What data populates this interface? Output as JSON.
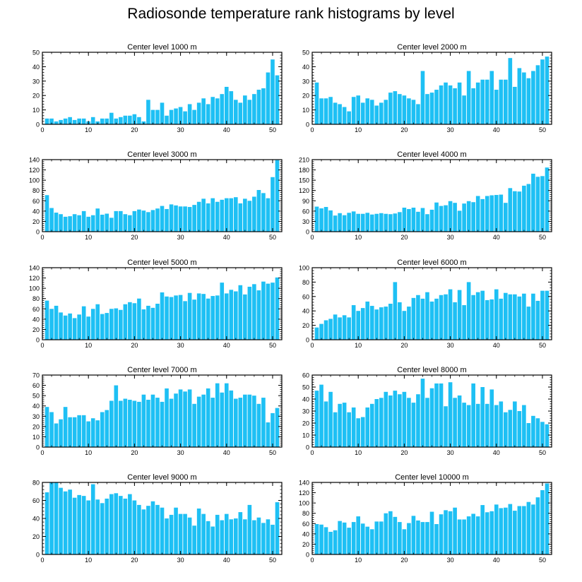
{
  "title": "Radiosonde temperature rank histograms by level",
  "colors": {
    "bar": "#1ec0f4",
    "axis": "#000000",
    "background": "#ffffff"
  },
  "chart_data": [
    {
      "type": "bar",
      "title": "Center level 1000 m",
      "ylim": [
        0,
        50
      ],
      "yticks": [
        0,
        10,
        20,
        30,
        40,
        50
      ],
      "xlim": [
        0,
        52
      ],
      "xticks": [
        0,
        10,
        20,
        30,
        40,
        50
      ],
      "x": [
        1,
        2,
        3,
        4,
        5,
        6,
        7,
        8,
        9,
        10,
        11,
        12,
        13,
        14,
        15,
        16,
        17,
        18,
        19,
        20,
        21,
        22,
        23,
        24,
        25,
        26,
        27,
        28,
        29,
        30,
        31,
        32,
        33,
        34,
        35,
        36,
        37,
        38,
        39,
        40,
        41,
        42,
        43,
        44,
        45,
        46,
        47,
        48,
        49,
        50,
        51
      ],
      "values": [
        4,
        4,
        2,
        3,
        4,
        5,
        3,
        4,
        4,
        2,
        5,
        2,
        4,
        4,
        8,
        4,
        5,
        6,
        6,
        7,
        5,
        2,
        17,
        10,
        10,
        15,
        6,
        10,
        11,
        12,
        9,
        14,
        10,
        15,
        18,
        14,
        19,
        18,
        21,
        26,
        23,
        17,
        15,
        20,
        17,
        21,
        24,
        25,
        36,
        45,
        34
      ]
    },
    {
      "type": "bar",
      "title": "Center level 2000 m",
      "ylim": [
        0,
        50
      ],
      "yticks": [
        0,
        10,
        20,
        30,
        40,
        50
      ],
      "xlim": [
        0,
        52
      ],
      "xticks": [
        0,
        10,
        20,
        30,
        40,
        50
      ],
      "x": [
        1,
        2,
        3,
        4,
        5,
        6,
        7,
        8,
        9,
        10,
        11,
        12,
        13,
        14,
        15,
        16,
        17,
        18,
        19,
        20,
        21,
        22,
        23,
        24,
        25,
        26,
        27,
        28,
        29,
        30,
        31,
        32,
        33,
        34,
        35,
        36,
        37,
        38,
        39,
        40,
        41,
        42,
        43,
        44,
        45,
        46,
        47,
        48,
        49,
        50,
        51
      ],
      "values": [
        29,
        18,
        18,
        19,
        15,
        14,
        12,
        9,
        19,
        20,
        15,
        18,
        17,
        13,
        15,
        17,
        22,
        23,
        21,
        20,
        18,
        17,
        14,
        37,
        21,
        22,
        24,
        27,
        29,
        27,
        25,
        29,
        20,
        37,
        25,
        29,
        31,
        31,
        37,
        24,
        31,
        31,
        46,
        26,
        39,
        36,
        32,
        37,
        41,
        45,
        47
      ]
    },
    {
      "type": "bar",
      "title": "Center level 3000 m",
      "ylim": [
        0,
        140
      ],
      "yticks": [
        0,
        20,
        40,
        60,
        80,
        100,
        120,
        140
      ],
      "xlim": [
        0,
        52
      ],
      "xticks": [
        0,
        10,
        20,
        30,
        40,
        50
      ],
      "x": [
        1,
        2,
        3,
        4,
        5,
        6,
        7,
        8,
        9,
        10,
        11,
        12,
        13,
        14,
        15,
        16,
        17,
        18,
        19,
        20,
        21,
        22,
        23,
        24,
        25,
        26,
        27,
        28,
        29,
        30,
        31,
        32,
        33,
        34,
        35,
        36,
        37,
        38,
        39,
        40,
        41,
        42,
        43,
        44,
        45,
        46,
        47,
        48,
        49,
        50,
        51
      ],
      "values": [
        71,
        46,
        37,
        34,
        29,
        30,
        34,
        32,
        40,
        29,
        32,
        45,
        33,
        35,
        27,
        40,
        40,
        34,
        32,
        40,
        43,
        41,
        38,
        42,
        45,
        50,
        44,
        53,
        51,
        49,
        49,
        48,
        52,
        58,
        64,
        55,
        65,
        58,
        62,
        65,
        65,
        67,
        55,
        64,
        60,
        68,
        81,
        75,
        65,
        106,
        139
      ]
    },
    {
      "type": "bar",
      "title": "Center level 4000 m",
      "ylim": [
        0,
        210
      ],
      "yticks": [
        0,
        30,
        60,
        90,
        120,
        150,
        180,
        210
      ],
      "xlim": [
        0,
        52
      ],
      "xticks": [
        0,
        10,
        20,
        30,
        40,
        50
      ],
      "x": [
        1,
        2,
        3,
        4,
        5,
        6,
        7,
        8,
        9,
        10,
        11,
        12,
        13,
        14,
        15,
        16,
        17,
        18,
        19,
        20,
        21,
        22,
        23,
        24,
        25,
        26,
        27,
        28,
        29,
        30,
        31,
        32,
        33,
        34,
        35,
        36,
        37,
        38,
        39,
        40,
        41,
        42,
        43,
        44,
        45,
        46,
        47,
        48,
        49,
        50,
        51
      ],
      "values": [
        73,
        68,
        72,
        62,
        47,
        54,
        48,
        55,
        59,
        52,
        52,
        55,
        50,
        52,
        54,
        52,
        51,
        53,
        57,
        70,
        66,
        70,
        58,
        69,
        51,
        64,
        85,
        75,
        77,
        89,
        84,
        61,
        82,
        89,
        86,
        104,
        95,
        104,
        106,
        107,
        108,
        84,
        127,
        118,
        117,
        134,
        139,
        169,
        160,
        162,
        187
      ]
    },
    {
      "type": "bar",
      "title": "Center level 5000 m",
      "ylim": [
        0,
        140
      ],
      "yticks": [
        0,
        20,
        40,
        60,
        80,
        100,
        120,
        140
      ],
      "xlim": [
        0,
        52
      ],
      "xticks": [
        0,
        10,
        20,
        30,
        40,
        50
      ],
      "x": [
        1,
        2,
        3,
        4,
        5,
        6,
        7,
        8,
        9,
        10,
        11,
        12,
        13,
        14,
        15,
        16,
        17,
        18,
        19,
        20,
        21,
        22,
        23,
        24,
        25,
        26,
        27,
        28,
        29,
        30,
        31,
        32,
        33,
        34,
        35,
        36,
        37,
        38,
        39,
        40,
        41,
        42,
        43,
        44,
        45,
        46,
        47,
        48,
        49,
        50,
        51
      ],
      "values": [
        76,
        60,
        66,
        53,
        47,
        51,
        42,
        49,
        65,
        45,
        60,
        69,
        50,
        52,
        60,
        61,
        58,
        69,
        73,
        71,
        80,
        59,
        66,
        62,
        70,
        92,
        84,
        83,
        86,
        87,
        75,
        91,
        78,
        90,
        89,
        80,
        85,
        86,
        111,
        90,
        97,
        94,
        106,
        88,
        103,
        108,
        96,
        113,
        109,
        111,
        121
      ]
    },
    {
      "type": "bar",
      "title": "Center level 6000 m",
      "ylim": [
        0,
        100
      ],
      "yticks": [
        0,
        20,
        40,
        60,
        80,
        100
      ],
      "xlim": [
        0,
        52
      ],
      "xticks": [
        0,
        10,
        20,
        30,
        40,
        50
      ],
      "x": [
        1,
        2,
        3,
        4,
        5,
        6,
        7,
        8,
        9,
        10,
        11,
        12,
        13,
        14,
        15,
        16,
        17,
        18,
        19,
        20,
        21,
        22,
        23,
        24,
        25,
        26,
        27,
        28,
        29,
        30,
        31,
        32,
        33,
        34,
        35,
        36,
        37,
        38,
        39,
        40,
        41,
        42,
        43,
        44,
        45,
        46,
        47,
        48,
        49,
        50,
        51
      ],
      "values": [
        17,
        22,
        27,
        29,
        35,
        31,
        34,
        31,
        48,
        40,
        44,
        53,
        47,
        42,
        45,
        46,
        50,
        80,
        52,
        40,
        46,
        58,
        62,
        57,
        66,
        53,
        57,
        62,
        63,
        70,
        52,
        69,
        48,
        80,
        62,
        66,
        68,
        55,
        56,
        70,
        57,
        65,
        63,
        63,
        60,
        64,
        46,
        64,
        54,
        68,
        68
      ]
    },
    {
      "type": "bar",
      "title": "Center level 7000 m",
      "ylim": [
        0,
        70
      ],
      "yticks": [
        0,
        10,
        20,
        30,
        40,
        50,
        60,
        70
      ],
      "xlim": [
        0,
        52
      ],
      "xticks": [
        0,
        10,
        20,
        30,
        40,
        50
      ],
      "x": [
        1,
        2,
        3,
        4,
        5,
        6,
        7,
        8,
        9,
        10,
        11,
        12,
        13,
        14,
        15,
        16,
        17,
        18,
        19,
        20,
        21,
        22,
        23,
        24,
        25,
        26,
        27,
        28,
        29,
        30,
        31,
        32,
        33,
        34,
        35,
        36,
        37,
        38,
        39,
        40,
        41,
        42,
        43,
        44,
        45,
        46,
        47,
        48,
        49,
        50,
        51
      ],
      "values": [
        39,
        34,
        23,
        27,
        39,
        29,
        29,
        31,
        31,
        25,
        28,
        26,
        34,
        36,
        45,
        60,
        45,
        47,
        46,
        45,
        44,
        51,
        46,
        51,
        48,
        44,
        57,
        47,
        52,
        56,
        54,
        56,
        42,
        49,
        51,
        57,
        48,
        62,
        53,
        62,
        55,
        47,
        48,
        51,
        51,
        50,
        42,
        48,
        24,
        33,
        38
      ]
    },
    {
      "type": "bar",
      "title": "Center level 8000 m",
      "ylim": [
        0,
        60
      ],
      "yticks": [
        0,
        10,
        20,
        30,
        40,
        50,
        60
      ],
      "xlim": [
        0,
        52
      ],
      "xticks": [
        0,
        10,
        20,
        30,
        40,
        50
      ],
      "x": [
        1,
        2,
        3,
        4,
        5,
        6,
        7,
        8,
        9,
        10,
        11,
        12,
        13,
        14,
        15,
        16,
        17,
        18,
        19,
        20,
        21,
        22,
        23,
        24,
        25,
        26,
        27,
        28,
        29,
        30,
        31,
        32,
        33,
        34,
        35,
        36,
        37,
        38,
        39,
        40,
        41,
        42,
        43,
        44,
        45,
        46,
        47,
        48,
        49,
        50,
        51
      ],
      "values": [
        47,
        52,
        38,
        46,
        29,
        36,
        37,
        29,
        33,
        24,
        25,
        33,
        36,
        40,
        41,
        46,
        43,
        47,
        44,
        46,
        41,
        37,
        44,
        57,
        41,
        49,
        53,
        53,
        34,
        54,
        41,
        43,
        37,
        35,
        53,
        36,
        50,
        36,
        48,
        35,
        38,
        29,
        31,
        38,
        30,
        35,
        20,
        26,
        24,
        21,
        19
      ]
    },
    {
      "type": "bar",
      "title": "Center level 9000 m",
      "ylim": [
        0,
        80
      ],
      "yticks": [
        0,
        20,
        40,
        60,
        80
      ],
      "xlim": [
        0,
        52
      ],
      "xticks": [
        0,
        10,
        20,
        30,
        40,
        50
      ],
      "x": [
        1,
        2,
        3,
        4,
        5,
        6,
        7,
        8,
        9,
        10,
        11,
        12,
        13,
        14,
        15,
        16,
        17,
        18,
        19,
        20,
        21,
        22,
        23,
        24,
        25,
        26,
        27,
        28,
        29,
        30,
        31,
        32,
        33,
        34,
        35,
        36,
        37,
        38,
        39,
        40,
        41,
        42,
        43,
        44,
        45,
        46,
        47,
        48,
        49,
        50,
        51
      ],
      "values": [
        69,
        80,
        80,
        74,
        70,
        72,
        63,
        66,
        65,
        60,
        78,
        61,
        57,
        62,
        67,
        68,
        65,
        62,
        67,
        60,
        55,
        50,
        54,
        59,
        55,
        52,
        40,
        44,
        52,
        45,
        45,
        41,
        32,
        51,
        45,
        37,
        31,
        44,
        38,
        45,
        39,
        40,
        47,
        39,
        55,
        38,
        41,
        35,
        39,
        33,
        58
      ]
    },
    {
      "type": "bar",
      "title": "Center level 10000 m",
      "ylim": [
        0,
        140
      ],
      "yticks": [
        0,
        20,
        40,
        60,
        80,
        100,
        120,
        140
      ],
      "xlim": [
        0,
        52
      ],
      "xticks": [
        0,
        10,
        20,
        30,
        40,
        50
      ],
      "x": [
        1,
        2,
        3,
        4,
        5,
        6,
        7,
        8,
        9,
        10,
        11,
        12,
        13,
        14,
        15,
        16,
        17,
        18,
        19,
        20,
        21,
        22,
        23,
        24,
        25,
        26,
        27,
        28,
        29,
        30,
        31,
        32,
        33,
        34,
        35,
        36,
        37,
        38,
        39,
        40,
        41,
        42,
        43,
        44,
        45,
        46,
        47,
        48,
        49,
        50,
        51
      ],
      "values": [
        59,
        58,
        53,
        44,
        47,
        65,
        62,
        52,
        63,
        74,
        60,
        54,
        49,
        64,
        64,
        80,
        84,
        73,
        63,
        49,
        61,
        75,
        66,
        63,
        63,
        83,
        59,
        78,
        86,
        84,
        91,
        68,
        68,
        74,
        79,
        74,
        96,
        82,
        84,
        97,
        90,
        91,
        98,
        85,
        94,
        94,
        102,
        97,
        111,
        125,
        138
      ]
    }
  ]
}
